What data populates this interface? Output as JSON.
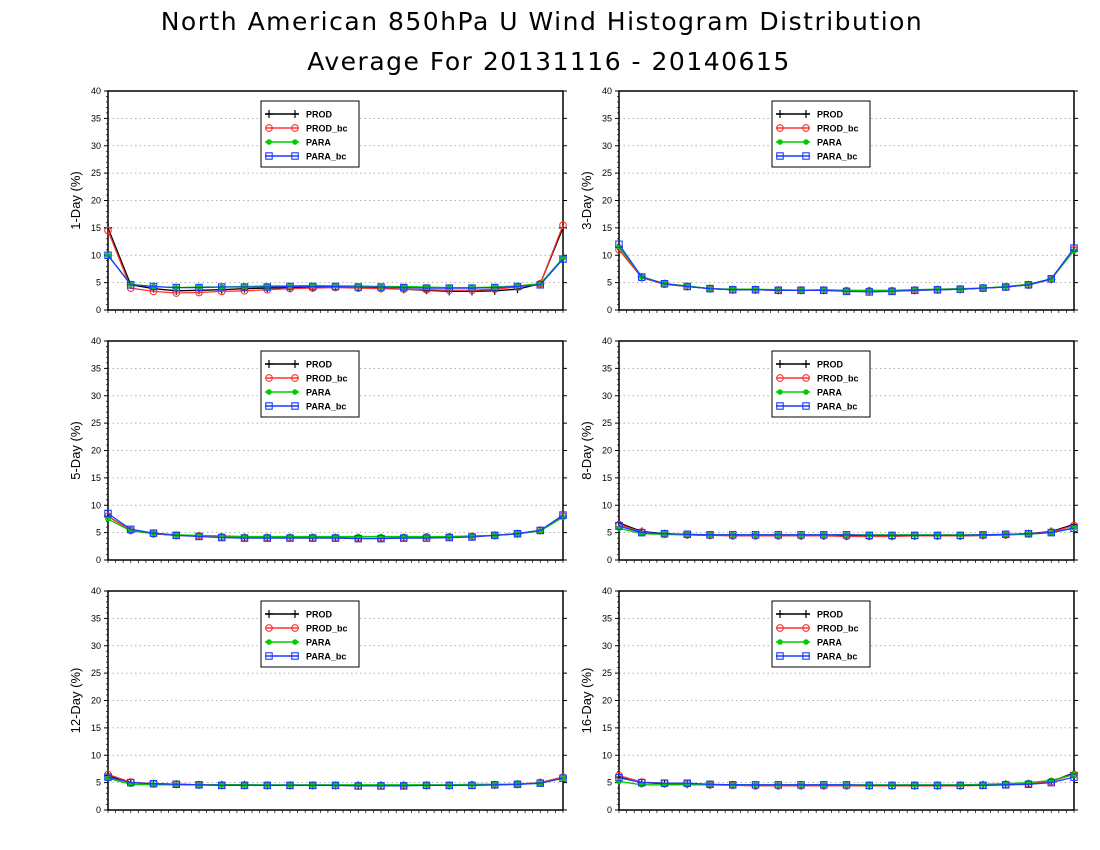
{
  "title": "North American 850hPa U Wind Histogram Distribution",
  "subtitle": "Average For 20131116 - 20140615",
  "colors": {
    "PROD": "#000000",
    "PROD_bc": "#ff3333",
    "PARA": "#00cc00",
    "PARA_bc": "#1a3cff",
    "grid": "#999999"
  },
  "chart_data": [
    {
      "type": "line",
      "ylabel": "1-Day (%)",
      "ylim": [
        0,
        40
      ],
      "yticks": [
        0,
        5,
        10,
        15,
        20,
        25,
        30,
        35,
        40
      ],
      "x": [
        1,
        2,
        3,
        4,
        5,
        6,
        7,
        8,
        9,
        10,
        11,
        12,
        13,
        14,
        15,
        16,
        17,
        18,
        19,
        20,
        21
      ],
      "grid": true,
      "legend_position": "top-left",
      "series": [
        {
          "name": "PROD",
          "marker": "plus",
          "values": [
            15,
            4.6,
            3.9,
            3.5,
            3.6,
            3.7,
            3.9,
            4.0,
            4.1,
            4.2,
            4.2,
            4.1,
            4.0,
            3.8,
            3.6,
            3.4,
            3.4,
            3.5,
            3.8,
            4.8,
            15
          ]
        },
        {
          "name": "PROD_bc",
          "marker": "circle",
          "values": [
            14.5,
            4.0,
            3.4,
            3.1,
            3.2,
            3.4,
            3.5,
            3.7,
            3.9,
            4.0,
            4.1,
            4.0,
            3.9,
            3.8,
            3.7,
            3.6,
            3.6,
            3.8,
            4.2,
            4.8,
            15.5
          ]
        },
        {
          "name": "PARA",
          "marker": "dot",
          "values": [
            10,
            4.7,
            4.3,
            4.1,
            4.2,
            4.2,
            4.3,
            4.4,
            4.4,
            4.5,
            4.4,
            4.4,
            4.3,
            4.3,
            4.2,
            4.1,
            4.1,
            4.2,
            4.4,
            4.8,
            9.5
          ]
        },
        {
          "name": "PARA_bc",
          "marker": "square",
          "values": [
            10,
            4.6,
            4.3,
            4.1,
            4.1,
            4.2,
            4.2,
            4.2,
            4.3,
            4.3,
            4.3,
            4.2,
            4.2,
            4.1,
            4.0,
            4.0,
            4.0,
            4.1,
            4.3,
            4.6,
            9.3
          ]
        }
      ]
    },
    {
      "type": "line",
      "ylabel": "3-Day (%)",
      "ylim": [
        0,
        40
      ],
      "yticks": [
        0,
        5,
        10,
        15,
        20,
        25,
        30,
        35,
        40
      ],
      "x": [
        1,
        2,
        3,
        4,
        5,
        6,
        7,
        8,
        9,
        10,
        11,
        12,
        13,
        14,
        15,
        16,
        17,
        18,
        19,
        20,
        21
      ],
      "grid": true,
      "legend_position": "top-left",
      "series": [
        {
          "name": "PROD",
          "marker": "plus",
          "values": [
            11.5,
            6.0,
            4.8,
            4.3,
            3.9,
            3.7,
            3.7,
            3.6,
            3.6,
            3.6,
            3.5,
            3.5,
            3.5,
            3.6,
            3.7,
            3.8,
            4.0,
            4.2,
            4.6,
            5.6,
            11
          ]
        },
        {
          "name": "PROD_bc",
          "marker": "circle",
          "values": [
            11,
            5.9,
            4.7,
            4.3,
            3.9,
            3.7,
            3.7,
            3.6,
            3.6,
            3.6,
            3.5,
            3.5,
            3.5,
            3.6,
            3.7,
            3.8,
            4.0,
            4.2,
            4.6,
            5.6,
            11
          ]
        },
        {
          "name": "PARA",
          "marker": "dot",
          "values": [
            11.5,
            6.1,
            4.8,
            4.4,
            3.9,
            3.8,
            3.8,
            3.7,
            3.6,
            3.7,
            3.6,
            3.6,
            3.6,
            3.7,
            3.8,
            3.9,
            4.0,
            4.3,
            4.7,
            5.7,
            10.8
          ]
        },
        {
          "name": "PARA_bc",
          "marker": "square",
          "values": [
            12,
            6.0,
            4.8,
            4.3,
            3.9,
            3.7,
            3.7,
            3.6,
            3.6,
            3.6,
            3.4,
            3.3,
            3.4,
            3.6,
            3.7,
            3.8,
            4.0,
            4.2,
            4.6,
            5.7,
            11.3
          ]
        }
      ]
    },
    {
      "type": "line",
      "ylabel": "5-Day (%)",
      "ylim": [
        0,
        40
      ],
      "yticks": [
        0,
        5,
        10,
        15,
        20,
        25,
        30,
        35,
        40
      ],
      "x": [
        1,
        2,
        3,
        4,
        5,
        6,
        7,
        8,
        9,
        10,
        11,
        12,
        13,
        14,
        15,
        16,
        17,
        18,
        19,
        20,
        21
      ],
      "grid": true,
      "legend_position": "top-left",
      "series": [
        {
          "name": "PROD",
          "marker": "plus",
          "values": [
            8.0,
            5.4,
            4.8,
            4.5,
            4.4,
            4.2,
            4.1,
            4.1,
            4.1,
            4.1,
            4.1,
            4.0,
            4.0,
            4.1,
            4.2,
            4.2,
            4.3,
            4.5,
            4.8,
            5.4,
            8.0
          ]
        },
        {
          "name": "PROD_bc",
          "marker": "circle",
          "values": [
            8.0,
            5.4,
            4.8,
            4.5,
            4.4,
            4.2,
            4.1,
            4.1,
            4.1,
            4.1,
            4.1,
            4.0,
            4.0,
            4.1,
            4.2,
            4.2,
            4.3,
            4.5,
            4.8,
            5.4,
            8.0
          ]
        },
        {
          "name": "PARA",
          "marker": "dot",
          "values": [
            7.5,
            5.3,
            4.9,
            4.6,
            4.5,
            4.4,
            4.3,
            4.3,
            4.3,
            4.3,
            4.3,
            4.3,
            4.3,
            4.3,
            4.3,
            4.3,
            4.4,
            4.5,
            4.8,
            5.3,
            7.8
          ]
        },
        {
          "name": "PARA_bc",
          "marker": "square",
          "values": [
            8.5,
            5.6,
            4.9,
            4.5,
            4.3,
            4.1,
            4.0,
            4.0,
            4.0,
            4.0,
            4.0,
            3.9,
            3.9,
            4.0,
            4.0,
            4.1,
            4.2,
            4.5,
            4.8,
            5.4,
            8.2
          ]
        }
      ]
    },
    {
      "type": "line",
      "ylabel": "8-Day (%)",
      "ylim": [
        0,
        40
      ],
      "yticks": [
        0,
        5,
        10,
        15,
        20,
        25,
        30,
        35,
        40
      ],
      "x": [
        1,
        2,
        3,
        4,
        5,
        6,
        7,
        8,
        9,
        10,
        11,
        12,
        13,
        14,
        15,
        16,
        17,
        18,
        19,
        20,
        21
      ],
      "grid": true,
      "legend_position": "top-left",
      "series": [
        {
          "name": "PROD",
          "marker": "plus",
          "values": [
            6.8,
            5.2,
            4.8,
            4.6,
            4.5,
            4.5,
            4.5,
            4.5,
            4.4,
            4.4,
            4.4,
            4.4,
            4.4,
            4.4,
            4.4,
            4.4,
            4.5,
            4.6,
            4.8,
            5.2,
            6.5
          ]
        },
        {
          "name": "PROD_bc",
          "marker": "circle",
          "values": [
            6.5,
            5.1,
            4.7,
            4.6,
            4.5,
            4.4,
            4.4,
            4.4,
            4.4,
            4.4,
            4.3,
            4.3,
            4.3,
            4.4,
            4.4,
            4.4,
            4.5,
            4.6,
            4.8,
            5.1,
            6.3
          ]
        },
        {
          "name": "PARA",
          "marker": "dot",
          "values": [
            5.8,
            4.8,
            4.7,
            4.6,
            4.6,
            4.6,
            4.6,
            4.6,
            4.6,
            4.6,
            4.6,
            4.6,
            4.6,
            4.6,
            4.6,
            4.6,
            4.6,
            4.6,
            4.7,
            5.0,
            5.9
          ]
        },
        {
          "name": "PARA_bc",
          "marker": "square",
          "values": [
            6.2,
            5.0,
            4.8,
            4.7,
            4.6,
            4.6,
            4.6,
            4.6,
            4.6,
            4.6,
            4.6,
            4.5,
            4.5,
            4.5,
            4.5,
            4.5,
            4.6,
            4.7,
            4.8,
            5.0,
            5.8
          ]
        }
      ]
    },
    {
      "type": "line",
      "ylabel": "12-Day (%)",
      "ylim": [
        0,
        40
      ],
      "yticks": [
        0,
        5,
        10,
        15,
        20,
        25,
        30,
        35,
        40
      ],
      "x": [
        1,
        2,
        3,
        4,
        5,
        6,
        7,
        8,
        9,
        10,
        11,
        12,
        13,
        14,
        15,
        16,
        17,
        18,
        19,
        20,
        21
      ],
      "grid": true,
      "legend_position": "top-left",
      "series": [
        {
          "name": "PROD",
          "marker": "plus",
          "values": [
            6.3,
            5.0,
            4.8,
            4.7,
            4.6,
            4.6,
            4.6,
            4.5,
            4.5,
            4.5,
            4.5,
            4.5,
            4.5,
            4.5,
            4.5,
            4.5,
            4.6,
            4.6,
            4.7,
            5.0,
            6.0
          ]
        },
        {
          "name": "PROD_bc",
          "marker": "circle",
          "values": [
            6.5,
            5.1,
            4.8,
            4.7,
            4.6,
            4.5,
            4.5,
            4.5,
            4.5,
            4.5,
            4.5,
            4.4,
            4.4,
            4.5,
            4.5,
            4.5,
            4.5,
            4.6,
            4.7,
            5.0,
            6.0
          ]
        },
        {
          "name": "PARA",
          "marker": "dot",
          "values": [
            5.8,
            4.7,
            4.6,
            4.6,
            4.6,
            4.6,
            4.6,
            4.6,
            4.6,
            4.6,
            4.6,
            4.6,
            4.6,
            4.6,
            4.6,
            4.6,
            4.7,
            4.7,
            4.7,
            4.9,
            5.8
          ]
        },
        {
          "name": "PARA_bc",
          "marker": "square",
          "values": [
            6.0,
            5.0,
            4.8,
            4.7,
            4.6,
            4.5,
            4.5,
            4.5,
            4.5,
            4.5,
            4.5,
            4.4,
            4.4,
            4.4,
            4.5,
            4.5,
            4.5,
            4.6,
            4.7,
            4.9,
            5.8
          ]
        }
      ]
    },
    {
      "type": "line",
      "ylabel": "16-Day (%)",
      "ylim": [
        0,
        40
      ],
      "yticks": [
        0,
        5,
        10,
        15,
        20,
        25,
        30,
        35,
        40
      ],
      "x": [
        1,
        2,
        3,
        4,
        5,
        6,
        7,
        8,
        9,
        10,
        11,
        12,
        13,
        14,
        15,
        16,
        17,
        18,
        19,
        20,
        21
      ],
      "grid": true,
      "legend_position": "top-left",
      "series": [
        {
          "name": "PROD",
          "marker": "plus",
          "values": [
            6.0,
            5.0,
            4.8,
            4.7,
            4.6,
            4.6,
            4.5,
            4.5,
            4.5,
            4.5,
            4.5,
            4.5,
            4.5,
            4.5,
            4.5,
            4.5,
            4.6,
            4.7,
            4.8,
            5.2,
            6.8
          ]
        },
        {
          "name": "PROD_bc",
          "marker": "circle",
          "values": [
            6.3,
            5.1,
            4.9,
            4.8,
            4.6,
            4.5,
            4.4,
            4.4,
            4.4,
            4.4,
            4.4,
            4.4,
            4.4,
            4.4,
            4.4,
            4.4,
            4.5,
            4.6,
            4.8,
            5.2,
            6.5
          ]
        },
        {
          "name": "PARA",
          "marker": "dot",
          "values": [
            5.2,
            4.6,
            4.6,
            4.6,
            4.6,
            4.6,
            4.6,
            4.6,
            4.6,
            4.6,
            4.6,
            4.6,
            4.6,
            4.6,
            4.6,
            4.6,
            4.7,
            4.8,
            5.0,
            5.4,
            6.5
          ]
        },
        {
          "name": "PARA_bc",
          "marker": "square",
          "values": [
            5.9,
            5.0,
            4.9,
            4.9,
            4.7,
            4.6,
            4.6,
            4.6,
            4.6,
            4.6,
            4.6,
            4.5,
            4.5,
            4.5,
            4.5,
            4.5,
            4.5,
            4.6,
            4.7,
            5.0,
            6.0
          ]
        }
      ]
    }
  ]
}
